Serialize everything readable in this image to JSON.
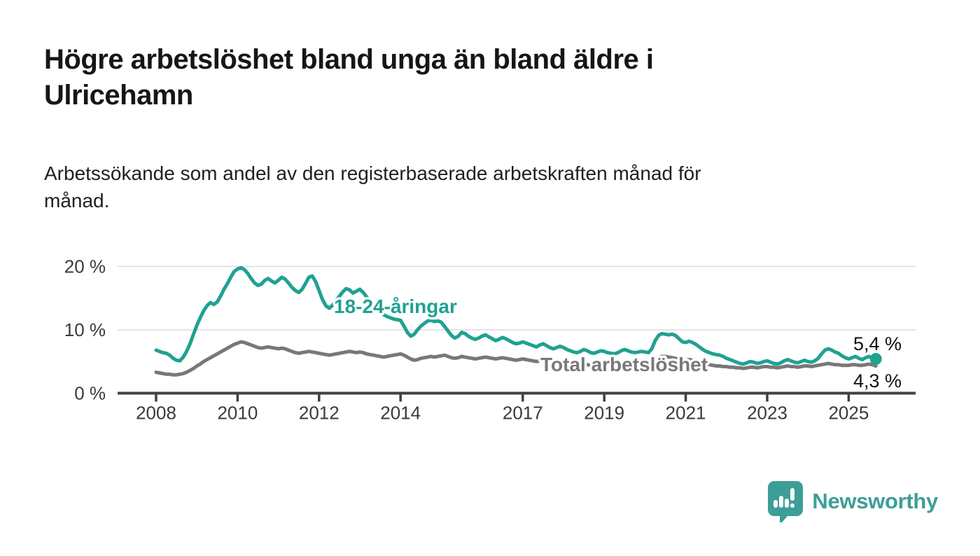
{
  "header": {
    "title": "Högre arbetslöshet bland unga än bland äldre i\nUlricehamn",
    "subtitle": "Arbetssökande som andel av den registerbaserade arbetskraften månad för\nmånad."
  },
  "chart_data": {
    "type": "line",
    "x_start_year": 2008,
    "x_step": "1 month",
    "x_end": "2025-09",
    "x_tick_years": [
      2008,
      2010,
      2012,
      2014,
      2017,
      2019,
      2021,
      2023,
      2025
    ],
    "x_tick_labels": [
      "2008",
      "2010",
      "2012",
      "2014",
      "2017",
      "2019",
      "2021",
      "2023",
      "2025"
    ],
    "y_ticks": [
      {
        "value": 0,
        "label": "0 %"
      },
      {
        "value": 10,
        "label": "10 %"
      },
      {
        "value": 20,
        "label": "20 %"
      }
    ],
    "ylim": [
      0,
      22
    ],
    "grid": "horizontal",
    "legend_position": "inline-labels",
    "series": [
      {
        "name": "Total arbetslöshet",
        "color": "#787878",
        "end_label": "4,3 %",
        "end_dot": false,
        "values": [
          3.3,
          3.2,
          3.1,
          3.0,
          3.0,
          2.9,
          2.9,
          3.0,
          3.1,
          3.3,
          3.6,
          3.9,
          4.3,
          4.6,
          5.0,
          5.3,
          5.6,
          5.9,
          6.2,
          6.5,
          6.8,
          7.1,
          7.4,
          7.7,
          7.9,
          8.1,
          8.0,
          7.8,
          7.6,
          7.4,
          7.2,
          7.1,
          7.2,
          7.3,
          7.2,
          7.1,
          7.0,
          7.1,
          7.0,
          6.8,
          6.6,
          6.4,
          6.3,
          6.4,
          6.5,
          6.6,
          6.5,
          6.4,
          6.3,
          6.2,
          6.1,
          6.0,
          6.1,
          6.2,
          6.3,
          6.4,
          6.5,
          6.6,
          6.5,
          6.4,
          6.5,
          6.4,
          6.2,
          6.1,
          6.0,
          5.9,
          5.8,
          5.7,
          5.8,
          5.9,
          6.0,
          6.1,
          6.2,
          6.0,
          5.7,
          5.4,
          5.2,
          5.3,
          5.5,
          5.6,
          5.7,
          5.8,
          5.7,
          5.8,
          5.9,
          6.0,
          5.8,
          5.6,
          5.5,
          5.6,
          5.8,
          5.7,
          5.6,
          5.5,
          5.4,
          5.5,
          5.6,
          5.7,
          5.6,
          5.5,
          5.4,
          5.5,
          5.6,
          5.5,
          5.4,
          5.3,
          5.2,
          5.3,
          5.4,
          5.3,
          5.2,
          5.1,
          5.0,
          5.1,
          5.2,
          5.1,
          5.0,
          4.9,
          4.8,
          4.9,
          4.8,
          4.7,
          4.6,
          4.5,
          4.4,
          4.5,
          4.6,
          4.5,
          4.4,
          4.3,
          4.4,
          4.5,
          4.5,
          4.4,
          4.3,
          4.3,
          4.4,
          4.5,
          4.6,
          4.5,
          4.4,
          4.4,
          4.5,
          4.6,
          4.6,
          4.6,
          4.9,
          5.4,
          5.7,
          5.8,
          5.8,
          5.7,
          5.6,
          5.5,
          5.3,
          5.2,
          5.2,
          5.3,
          5.2,
          5.0,
          4.9,
          4.7,
          4.6,
          4.5,
          4.4,
          4.3,
          4.3,
          4.2,
          4.2,
          4.1,
          4.1,
          4.0,
          4.0,
          3.9,
          4.0,
          4.1,
          4.1,
          4.0,
          4.1,
          4.2,
          4.2,
          4.1,
          4.1,
          4.0,
          4.1,
          4.2,
          4.3,
          4.2,
          4.2,
          4.1,
          4.2,
          4.3,
          4.3,
          4.2,
          4.3,
          4.4,
          4.5,
          4.6,
          4.7,
          4.6,
          4.5,
          4.5,
          4.4,
          4.4,
          4.4,
          4.5,
          4.5,
          4.4,
          4.4,
          4.5,
          4.6,
          4.5,
          4.3
        ]
      },
      {
        "name": "18-24-åringar",
        "color": "#20a191",
        "end_label": "5,4 %",
        "end_dot": true,
        "values": [
          6.8,
          6.6,
          6.4,
          6.3,
          6.0,
          5.5,
          5.2,
          5.1,
          5.7,
          6.6,
          7.8,
          9.3,
          10.7,
          11.9,
          13.0,
          13.8,
          14.3,
          14.0,
          14.4,
          15.3,
          16.4,
          17.3,
          18.3,
          19.2,
          19.6,
          19.8,
          19.5,
          18.9,
          18.1,
          17.4,
          17.0,
          17.2,
          17.8,
          18.1,
          17.7,
          17.4,
          17.8,
          18.3,
          18.0,
          17.4,
          16.7,
          16.2,
          15.9,
          16.4,
          17.3,
          18.3,
          18.5,
          17.6,
          16.2,
          14.8,
          13.8,
          13.4,
          13.9,
          14.6,
          15.3,
          16.0,
          16.5,
          16.3,
          15.8,
          16.1,
          16.4,
          15.9,
          15.2,
          14.4,
          13.7,
          13.2,
          12.8,
          12.4,
          12.1,
          11.9,
          11.7,
          11.6,
          11.5,
          10.6,
          9.6,
          9.0,
          9.3,
          10.0,
          10.6,
          11.0,
          11.4,
          11.5,
          11.3,
          11.4,
          11.2,
          10.5,
          9.8,
          9.1,
          8.7,
          9.0,
          9.6,
          9.4,
          9.0,
          8.7,
          8.5,
          8.7,
          9.0,
          9.2,
          8.9,
          8.6,
          8.3,
          8.5,
          8.8,
          8.6,
          8.3,
          8.0,
          7.8,
          7.9,
          8.1,
          7.9,
          7.7,
          7.5,
          7.3,
          7.6,
          7.8,
          7.5,
          7.2,
          7.0,
          7.2,
          7.4,
          7.2,
          6.9,
          6.7,
          6.5,
          6.4,
          6.6,
          6.9,
          6.7,
          6.4,
          6.3,
          6.5,
          6.7,
          6.6,
          6.4,
          6.3,
          6.2,
          6.4,
          6.7,
          6.9,
          6.7,
          6.5,
          6.4,
          6.5,
          6.6,
          6.5,
          6.4,
          7.0,
          8.3,
          9.1,
          9.4,
          9.3,
          9.2,
          9.3,
          9.1,
          8.6,
          8.1,
          8.0,
          8.2,
          8.0,
          7.7,
          7.3,
          6.9,
          6.6,
          6.4,
          6.2,
          6.1,
          6.0,
          5.8,
          5.5,
          5.3,
          5.1,
          4.9,
          4.7,
          4.6,
          4.8,
          5.0,
          4.9,
          4.7,
          4.8,
          5.0,
          5.1,
          4.9,
          4.7,
          4.6,
          4.8,
          5.1,
          5.3,
          5.1,
          4.9,
          4.8,
          5.0,
          5.2,
          5.0,
          4.9,
          5.1,
          5.5,
          6.2,
          6.8,
          7.0,
          6.8,
          6.5,
          6.3,
          5.9,
          5.6,
          5.4,
          5.6,
          5.8,
          5.5,
          5.3,
          5.6,
          5.8,
          5.5,
          5.4
        ]
      }
    ]
  },
  "colors": {
    "accent_teal": "#20a191",
    "series_gray": "#787878",
    "axis": "#404040",
    "gridline": "#dcdcdc",
    "text": "#161616",
    "logo_teal": "#3d9e97"
  },
  "footer": {
    "brand": "Newsworthy",
    "logo_icon": "bar-chart-speech-bubble-icon"
  }
}
